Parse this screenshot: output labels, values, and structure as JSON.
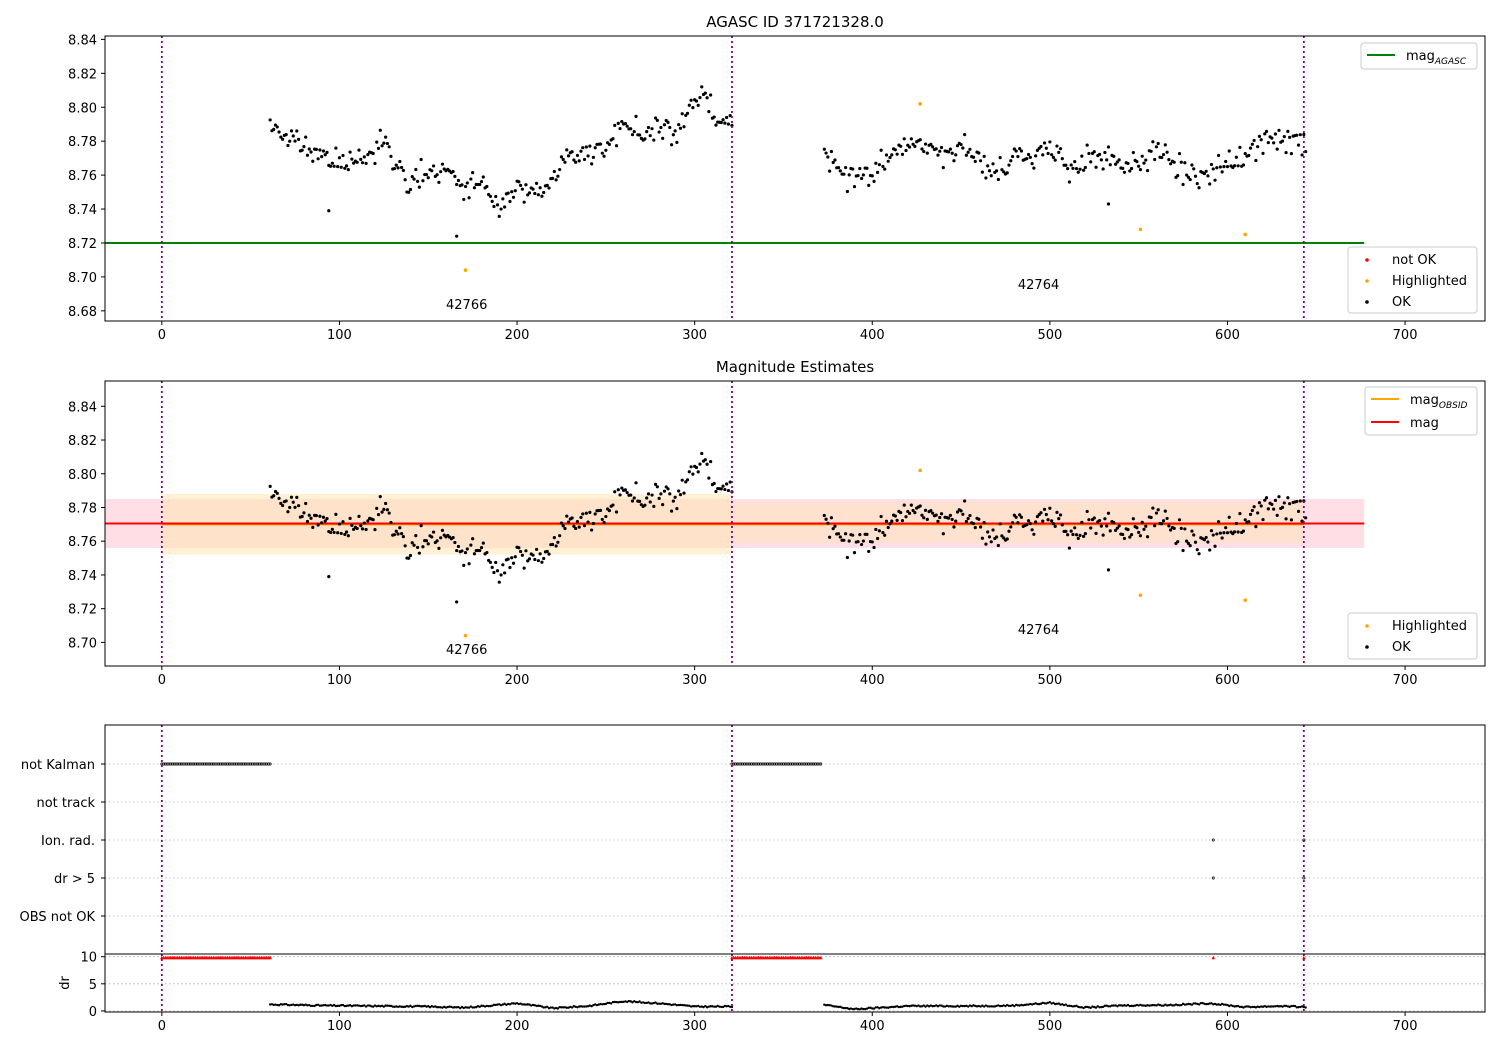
{
  "figure": {
    "background": "#ffffff"
  },
  "colors": {
    "ok": "#000000",
    "not_ok": "#ff0000",
    "highlighted": "#ffa500",
    "mag_agasc": "#008000",
    "mag_obsid": "#ffa500",
    "mag": "#ff0000",
    "obs_boundary": "#800080",
    "grid": "#b0b0b0",
    "band_mag": "#ffc0cb",
    "band_obsid": "#ffe4b5"
  },
  "chart_data": [
    {
      "id": "panel1",
      "type": "scatter",
      "title": "AGASC ID 371721328.0",
      "xlim": [
        -32,
        745
      ],
      "ylim": [
        8.674,
        8.842
      ],
      "xticks": [
        0,
        100,
        200,
        300,
        400,
        500,
        600,
        700
      ],
      "xtick_labels": [
        "0",
        "100",
        "200",
        "300",
        "400",
        "500",
        "600",
        "700"
      ],
      "yticks": [
        8.68,
        8.7,
        8.72,
        8.74,
        8.76,
        8.78,
        8.8,
        8.82,
        8.84
      ],
      "ytick_labels": [
        "8.68",
        "8.70",
        "8.72",
        "8.74",
        "8.76",
        "8.78",
        "8.80",
        "8.82",
        "8.84"
      ],
      "vlines": [
        0,
        321,
        643
      ],
      "obs_labels": [
        {
          "text": "42766",
          "x": 160,
          "y": 8.681
        },
        {
          "text": "42764",
          "x": 482,
          "y": 8.693
        }
      ],
      "hlines": [
        {
          "name": "mag_AGASC",
          "y": 8.72,
          "x": [
            -32,
            677
          ],
          "color": "#008000"
        }
      ],
      "series": [
        {
          "name": "OK",
          "color": "#000000",
          "segments": [
            {
              "x0": 61,
              "x1": 321,
              "step": 1,
              "trend": [
                [
                  61,
                  8.79
                ],
                [
                  70,
                  8.782
                ],
                [
                  80,
                  8.777
                ],
                [
                  95,
                  8.768
                ],
                [
                  110,
                  8.768
                ],
                [
                  120,
                  8.775
                ],
                [
                  125,
                  8.781
                ],
                [
                  130,
                  8.77
                ],
                [
                  140,
                  8.754
                ],
                [
                  150,
                  8.762
                ],
                [
                  160,
                  8.765
                ],
                [
                  170,
                  8.752
                ],
                [
                  180,
                  8.757
                ],
                [
                  190,
                  8.736
                ],
                [
                  200,
                  8.754
                ],
                [
                  210,
                  8.749
                ],
                [
                  220,
                  8.758
                ],
                [
                  230,
                  8.771
                ],
                [
                  240,
                  8.772
                ],
                [
                  250,
                  8.776
                ],
                [
                  260,
                  8.79
                ],
                [
                  270,
                  8.785
                ],
                [
                  280,
                  8.79
                ],
                [
                  290,
                  8.783
                ],
                [
                  300,
                  8.805
                ],
                [
                  306,
                  8.808
                ],
                [
                  312,
                  8.79
                ],
                [
                  321,
                  8.79
                ]
              ],
              "scatter": 0.0045,
              "seed": 11
            },
            {
              "x0": 373,
              "x1": 644,
              "step": 1,
              "trend": [
                [
                  373,
                  8.772
                ],
                [
                  380,
                  8.763
                ],
                [
                  390,
                  8.758
                ],
                [
                  400,
                  8.76
                ],
                [
                  410,
                  8.772
                ],
                [
                  420,
                  8.778
                ],
                [
                  430,
                  8.783
                ],
                [
                  440,
                  8.771
                ],
                [
                  450,
                  8.776
                ],
                [
                  460,
                  8.768
                ],
                [
                  470,
                  8.76
                ],
                [
                  480,
                  8.773
                ],
                [
                  490,
                  8.77
                ],
                [
                  500,
                  8.778
                ],
                [
                  510,
                  8.763
                ],
                [
                  520,
                  8.77
                ],
                [
                  530,
                  8.773
                ],
                [
                  540,
                  8.767
                ],
                [
                  550,
                  8.767
                ],
                [
                  560,
                  8.775
                ],
                [
                  570,
                  8.768
                ],
                [
                  580,
                  8.758
                ],
                [
                  590,
                  8.76
                ],
                [
                  600,
                  8.765
                ],
                [
                  610,
                  8.773
                ],
                [
                  620,
                  8.779
                ],
                [
                  630,
                  8.781
                ],
                [
                  644,
                  8.78
                ]
              ],
              "scatter": 0.005,
              "seed": 23
            }
          ],
          "outliers": [
            [
              94,
              8.739
            ],
            [
              166,
              8.724
            ],
            [
              533,
              8.743
            ]
          ]
        },
        {
          "name": "Highlighted",
          "color": "#ffa500",
          "points": [
            [
              171,
              8.704
            ],
            [
              427,
              8.802
            ],
            [
              551,
              8.728
            ],
            [
              610,
              8.725
            ]
          ]
        }
      ],
      "legend_lines": {
        "position": "upper right",
        "entries": [
          {
            "label": "mag",
            "sub": "AGASC",
            "color": "#008000"
          }
        ]
      },
      "legend_points": {
        "position": "lower right",
        "entries": [
          {
            "label": "not OK",
            "color": "#ff0000"
          },
          {
            "label": "Highlighted",
            "color": "#ffa500"
          },
          {
            "label": "OK",
            "color": "#000000"
          }
        ]
      }
    },
    {
      "id": "panel2",
      "type": "scatter",
      "title": "Magnitude Estimates",
      "xlim": [
        -32,
        745
      ],
      "ylim": [
        8.686,
        8.855
      ],
      "xticks": [
        0,
        100,
        200,
        300,
        400,
        500,
        600,
        700
      ],
      "xtick_labels": [
        "0",
        "100",
        "200",
        "300",
        "400",
        "500",
        "600",
        "700"
      ],
      "yticks": [
        8.7,
        8.72,
        8.74,
        8.76,
        8.78,
        8.8,
        8.82,
        8.84
      ],
      "ytick_labels": [
        "8.70",
        "8.72",
        "8.74",
        "8.76",
        "8.78",
        "8.80",
        "8.82",
        "8.84"
      ],
      "vlines": [
        0,
        321,
        643
      ],
      "obs_labels": [
        {
          "text": "42766",
          "x": 160,
          "y": 8.693
        },
        {
          "text": "42764",
          "x": 482,
          "y": 8.705
        }
      ],
      "bands": [
        {
          "name": "mag",
          "x": [
            -32,
            677
          ],
          "y": [
            8.756,
            8.785
          ],
          "color": "#ffc0cb",
          "opacity": 0.5
        },
        {
          "name": "mag_OBSID 42766",
          "x": [
            0,
            321
          ],
          "y": [
            8.752,
            8.788
          ],
          "color": "#ffe4b5",
          "opacity": 0.55
        },
        {
          "name": "mag_OBSID 42764",
          "x": [
            321,
            643
          ],
          "y": [
            8.759,
            8.783
          ],
          "color": "#ffe4b5",
          "opacity": 0.45
        }
      ],
      "hlines": [
        {
          "name": "mag_OBSID",
          "y": 8.77,
          "x": [
            0,
            643
          ],
          "color": "#ffa500"
        },
        {
          "name": "mag",
          "y": 8.7705,
          "x": [
            -32,
            677
          ],
          "color": "#ff0000"
        }
      ],
      "series_ref": "panel1",
      "legend_lines": {
        "position": "upper right",
        "entries": [
          {
            "label": "mag",
            "sub": "OBSID",
            "color": "#ffa500"
          },
          {
            "label": "mag",
            "sub": "",
            "color": "#ff0000"
          }
        ]
      },
      "legend_points": {
        "position": "lower right",
        "entries": [
          {
            "label": "Highlighted",
            "color": "#ffa500"
          },
          {
            "label": "OK",
            "color": "#000000"
          }
        ]
      }
    },
    {
      "id": "panel3",
      "type": "scatter",
      "title": "",
      "xlim": [
        -32,
        745
      ],
      "categories": [
        "not Kalman",
        "not track",
        "Ion. rad.",
        "dr > 5",
        "OBS not OK"
      ],
      "flags": {
        "not Kalman": [
          [
            0,
            61
          ],
          [
            321,
            371
          ]
        ],
        "not track": [],
        "Ion. rad.": [
          [
            592,
            592
          ],
          [
            643,
            643
          ]
        ],
        "dr > 5": [
          [
            592,
            592
          ],
          [
            643,
            643
          ]
        ],
        "OBS not OK": []
      }
    },
    {
      "id": "panel4",
      "type": "scatter",
      "xlim": [
        -32,
        745
      ],
      "ylim": [
        -0.2,
        10.5
      ],
      "ylabel": "dr",
      "xticks": [
        0,
        100,
        200,
        300,
        400,
        500,
        600,
        700
      ],
      "xtick_labels": [
        "0",
        "100",
        "200",
        "300",
        "400",
        "500",
        "600",
        "700"
      ],
      "yticks": [
        0,
        5,
        10
      ],
      "ytick_labels": [
        "0",
        "5",
        "10"
      ],
      "vlines": [
        0,
        321,
        643
      ],
      "not_ok_ranges": [
        [
          0,
          61
        ],
        [
          321,
          371
        ],
        [
          592,
          592
        ],
        [
          643,
          643
        ]
      ],
      "not_ok_value": 9.8,
      "ok_segments": [
        {
          "x0": 61,
          "x1": 321,
          "trend": [
            [
              61,
              1.2
            ],
            [
              90,
              1.0
            ],
            [
              120,
              0.9
            ],
            [
              150,
              0.8
            ],
            [
              170,
              0.6
            ],
            [
              200,
              1.4
            ],
            [
              220,
              0.5
            ],
            [
              240,
              0.9
            ],
            [
              260,
              1.8
            ],
            [
              280,
              1.4
            ],
            [
              300,
              0.8
            ],
            [
              321,
              0.8
            ]
          ]
        },
        {
          "x0": 373,
          "x1": 644,
          "trend": [
            [
              373,
              1.1
            ],
            [
              390,
              0.3
            ],
            [
              420,
              0.9
            ],
            [
              460,
              0.9
            ],
            [
              480,
              1.0
            ],
            [
              500,
              1.5
            ],
            [
              520,
              0.6
            ],
            [
              540,
              1.0
            ],
            [
              570,
              1.1
            ],
            [
              590,
              1.4
            ],
            [
              610,
              0.7
            ],
            [
              630,
              0.9
            ],
            [
              644,
              0.7
            ]
          ]
        }
      ]
    }
  ]
}
